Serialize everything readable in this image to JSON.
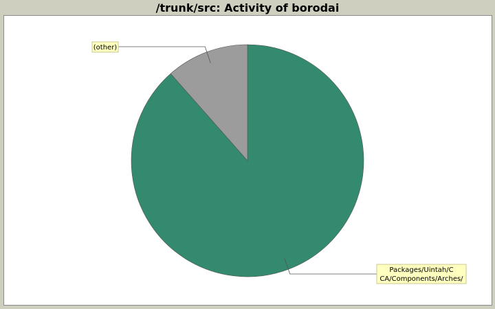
{
  "chart_data": {
    "type": "pie",
    "title": "/trunk/src: Activity of borodai",
    "slices": [
      {
        "label_lines": [
          "Packages/Uintah/C",
          "CA/Components/Arches/"
        ],
        "value": 88.5,
        "color": "#338a6e"
      },
      {
        "label_lines": [
          "(other)"
        ],
        "value": 11.5,
        "color": "#9c9c9c"
      }
    ],
    "start_angle_deg": 0,
    "direction": "clockwise"
  }
}
